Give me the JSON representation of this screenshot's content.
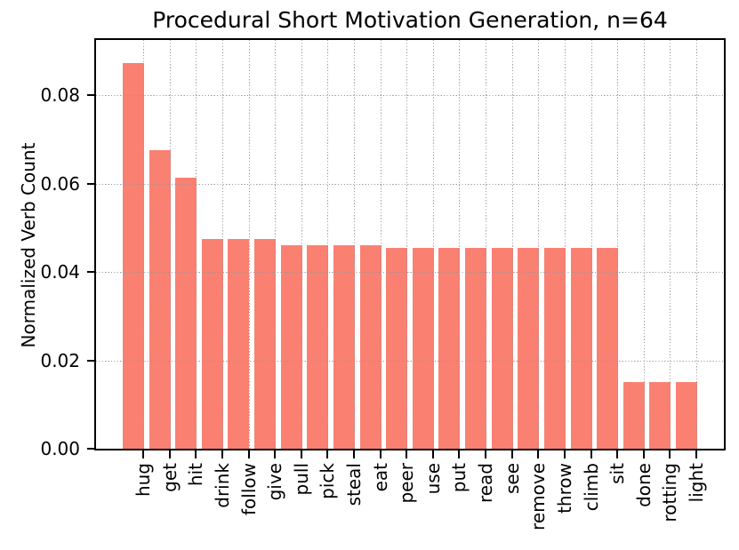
{
  "chart_data": {
    "type": "bar",
    "title": "Procedural Short Motivation Generation, n=64",
    "xlabel": "",
    "ylabel": "Normalized Verb Count",
    "categories": [
      "hug",
      "get",
      "hit",
      "drink",
      "follow",
      "give",
      "pull",
      "pick",
      "steal",
      "eat",
      "peer",
      "use",
      "put",
      "read",
      "see",
      "remove",
      "throw",
      "climb",
      "sit",
      "done",
      "rotting",
      "light"
    ],
    "values": [
      0.0872,
      0.0675,
      0.0614,
      0.0475,
      0.0475,
      0.0475,
      0.0461,
      0.0461,
      0.0461,
      0.0461,
      0.0455,
      0.0455,
      0.0455,
      0.0455,
      0.0455,
      0.0455,
      0.0455,
      0.0455,
      0.0455,
      0.0151,
      0.0151,
      0.0151
    ],
    "ylim": [
      0,
      0.0925
    ],
    "yticks": [
      0,
      0.02,
      0.04,
      0.06,
      0.08
    ],
    "ytick_labels": [
      "0.00",
      "0.02",
      "0.04",
      "0.06",
      "0.08"
    ],
    "xtick_label_rotation": 90,
    "bar_color": "#FA8072",
    "grid": {
      "visible": true,
      "style": "dotted",
      "axes": "both",
      "on_top": true,
      "color": "#999999"
    },
    "legend_position": "none",
    "background_color": "#FFFFFF",
    "text_color": "#000000"
  }
}
